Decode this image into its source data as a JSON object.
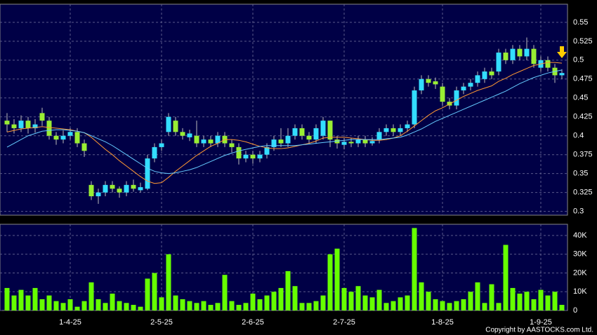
{
  "chart_data": [
    {
      "type": "candlestick",
      "up_color": "#33ddff",
      "down_color": "#99ee33",
      "open": [
        0.42,
        0.415,
        0.41,
        0.42,
        0.41,
        0.43,
        0.42,
        0.4,
        0.395,
        0.4,
        0.405,
        0.39,
        0.335,
        0.32,
        0.325,
        0.335,
        0.33,
        0.325,
        0.335,
        0.328,
        0.33,
        0.37,
        0.385,
        0.405,
        0.42,
        0.405,
        0.398,
        0.4,
        0.39,
        0.395,
        0.39,
        0.4,
        0.39,
        0.385,
        0.37,
        0.375,
        0.37,
        0.375,
        0.385,
        0.395,
        0.39,
        0.4,
        0.41,
        0.4,
        0.395,
        0.4,
        0.42,
        0.395,
        0.388,
        0.392,
        0.39,
        0.395,
        0.39,
        0.395,
        0.405,
        0.41,
        0.405,
        0.41,
        0.415,
        0.46,
        0.475,
        0.472,
        0.465,
        0.445,
        0.44,
        0.46,
        0.465,
        0.47,
        0.475,
        0.485,
        0.485,
        0.51,
        0.5,
        0.515,
        0.505,
        0.515,
        0.49,
        0.5,
        0.49,
        0.48
      ],
      "high": [
        0.43,
        0.422,
        0.427,
        0.425,
        0.422,
        0.437,
        0.425,
        0.405,
        0.407,
        0.41,
        0.41,
        0.395,
        0.34,
        0.33,
        0.34,
        0.34,
        0.333,
        0.34,
        0.342,
        0.338,
        0.375,
        0.39,
        0.395,
        0.43,
        0.425,
        0.41,
        0.408,
        0.42,
        0.4,
        0.4,
        0.405,
        0.405,
        0.395,
        0.39,
        0.38,
        0.38,
        0.38,
        0.39,
        0.4,
        0.41,
        0.41,
        0.415,
        0.415,
        0.405,
        0.415,
        0.425,
        0.42,
        0.4,
        0.397,
        0.397,
        0.4,
        0.4,
        0.398,
        0.41,
        0.415,
        0.415,
        0.415,
        0.42,
        0.465,
        0.48,
        0.48,
        0.477,
        0.47,
        0.45,
        0.465,
        0.47,
        0.475,
        0.485,
        0.49,
        0.49,
        0.515,
        0.515,
        0.52,
        0.52,
        0.53,
        0.52,
        0.505,
        0.505,
        0.495,
        0.488
      ],
      "low": [
        0.405,
        0.403,
        0.405,
        0.403,
        0.404,
        0.413,
        0.395,
        0.388,
        0.39,
        0.395,
        0.385,
        0.372,
        0.315,
        0.31,
        0.32,
        0.325,
        0.318,
        0.32,
        0.326,
        0.325,
        0.328,
        0.365,
        0.38,
        0.4,
        0.4,
        0.395,
        0.393,
        0.385,
        0.385,
        0.385,
        0.385,
        0.385,
        0.378,
        0.362,
        0.365,
        0.363,
        0.365,
        0.37,
        0.38,
        0.385,
        0.385,
        0.395,
        0.395,
        0.39,
        0.39,
        0.395,
        0.385,
        0.383,
        0.382,
        0.385,
        0.385,
        0.385,
        0.387,
        0.39,
        0.4,
        0.4,
        0.4,
        0.405,
        0.41,
        0.455,
        0.465,
        0.462,
        0.44,
        0.435,
        0.435,
        0.455,
        0.46,
        0.465,
        0.47,
        0.475,
        0.48,
        0.495,
        0.495,
        0.5,
        0.5,
        0.49,
        0.485,
        0.485,
        0.47,
        0.475
      ],
      "close": [
        0.415,
        0.41,
        0.42,
        0.41,
        0.415,
        0.42,
        0.4,
        0.395,
        0.4,
        0.405,
        0.39,
        0.38,
        0.32,
        0.325,
        0.335,
        0.33,
        0.325,
        0.335,
        0.33,
        0.332,
        0.37,
        0.385,
        0.39,
        0.425,
        0.405,
        0.4,
        0.403,
        0.39,
        0.395,
        0.39,
        0.4,
        0.39,
        0.385,
        0.37,
        0.375,
        0.37,
        0.375,
        0.385,
        0.395,
        0.39,
        0.4,
        0.41,
        0.4,
        0.395,
        0.41,
        0.42,
        0.395,
        0.39,
        0.392,
        0.39,
        0.395,
        0.39,
        0.393,
        0.405,
        0.41,
        0.405,
        0.41,
        0.415,
        0.46,
        0.475,
        0.47,
        0.468,
        0.445,
        0.44,
        0.46,
        0.465,
        0.47,
        0.48,
        0.485,
        0.48,
        0.51,
        0.5,
        0.515,
        0.505,
        0.515,
        0.495,
        0.5,
        0.49,
        0.48,
        0.483
      ],
      "series": [
        {
          "color": "#ff9933",
          "values": [
            0.405,
            0.407,
            0.409,
            0.41,
            0.411,
            0.412,
            0.411,
            0.41,
            0.409,
            0.408,
            0.406,
            0.404,
            0.398,
            0.39,
            0.382,
            0.375,
            0.367,
            0.36,
            0.353,
            0.346,
            0.34,
            0.337,
            0.338,
            0.345,
            0.353,
            0.36,
            0.367,
            0.374,
            0.38,
            0.386,
            0.39,
            0.395,
            0.395,
            0.394,
            0.392,
            0.389,
            0.386,
            0.384,
            0.383,
            0.383,
            0.384,
            0.386,
            0.388,
            0.39,
            0.393,
            0.397,
            0.398,
            0.398,
            0.398,
            0.397,
            0.396,
            0.395,
            0.394,
            0.394,
            0.395,
            0.397,
            0.4,
            0.406,
            0.413,
            0.42,
            0.427,
            0.433,
            0.437,
            0.442,
            0.447,
            0.452,
            0.456,
            0.46,
            0.463,
            0.466,
            0.472,
            0.476,
            0.481,
            0.485,
            0.489,
            0.493,
            0.495,
            0.497,
            0.497,
            0.496
          ]
        },
        {
          "color": "#66ccff",
          "values": [
            0.385,
            0.39,
            0.395,
            0.4,
            0.403,
            0.406,
            0.407,
            0.408,
            0.408,
            0.407,
            0.406,
            0.404,
            0.4,
            0.396,
            0.392,
            0.387,
            0.381,
            0.375,
            0.369,
            0.363,
            0.357,
            0.353,
            0.351,
            0.35,
            0.351,
            0.353,
            0.355,
            0.358,
            0.362,
            0.366,
            0.37,
            0.374,
            0.377,
            0.38,
            0.382,
            0.384,
            0.386,
            0.387,
            0.387,
            0.387,
            0.387,
            0.387,
            0.388,
            0.389,
            0.39,
            0.391,
            0.392,
            0.393,
            0.394,
            0.395,
            0.395,
            0.395,
            0.395,
            0.395,
            0.396,
            0.397,
            0.398,
            0.401,
            0.405,
            0.409,
            0.414,
            0.419,
            0.423,
            0.427,
            0.431,
            0.435,
            0.439,
            0.443,
            0.447,
            0.451,
            0.455,
            0.459,
            0.464,
            0.469,
            0.473,
            0.477,
            0.48,
            0.483,
            0.485,
            0.487
          ]
        }
      ],
      "ylim": [
        0.295,
        0.574
      ],
      "yticks": [
        0.3,
        0.325,
        0.35,
        0.375,
        0.4,
        0.425,
        0.45,
        0.475,
        0.5,
        0.525,
        0.55
      ],
      "grid": true
    },
    {
      "type": "bar",
      "color": "#66ff00",
      "categories": [
        null,
        null,
        null,
        null,
        null,
        null,
        null,
        null,
        null,
        "1-4-25",
        null,
        null,
        null,
        null,
        null,
        null,
        null,
        null,
        null,
        null,
        null,
        null,
        "2-5-25",
        null,
        null,
        null,
        null,
        null,
        null,
        null,
        null,
        null,
        null,
        null,
        null,
        "2-6-25",
        null,
        null,
        null,
        null,
        null,
        null,
        null,
        null,
        null,
        null,
        null,
        null,
        "2-7-25",
        null,
        null,
        null,
        null,
        null,
        null,
        null,
        null,
        null,
        null,
        null,
        null,
        null,
        "1-8-25",
        null,
        null,
        null,
        null,
        null,
        null,
        null,
        null,
        null,
        null,
        null,
        null,
        null,
        "1-9-25",
        null,
        null,
        null
      ],
      "values": [
        12000,
        8000,
        11000,
        8000,
        12000,
        6000,
        8000,
        5000,
        4000,
        6000,
        2000,
        5000,
        15000,
        6000,
        4000,
        9000,
        5000,
        4000,
        3000,
        2000,
        17000,
        20000,
        7000,
        30000,
        8000,
        6000,
        5000,
        4000,
        5000,
        3000,
        4000,
        19000,
        5000,
        3000,
        4000,
        9000,
        6000,
        8000,
        10000,
        12000,
        21000,
        13000,
        4000,
        4000,
        5000,
        8000,
        30000,
        33000,
        12000,
        10000,
        13000,
        8000,
        7000,
        11000,
        4000,
        5000,
        7000,
        8000,
        44000,
        15000,
        10000,
        6000,
        5000,
        4000,
        5000,
        6000,
        10000,
        15000,
        4000,
        14000,
        4000,
        35000,
        12000,
        9000,
        10000,
        6000,
        11000,
        8000,
        10000,
        3000
      ],
      "ylim": [
        0,
        46000
      ],
      "yticks": [
        0,
        {
          "value": 10000,
          "label": "10K"
        },
        {
          "value": 20000,
          "label": "20K"
        },
        {
          "value": 30000,
          "label": "30K"
        },
        {
          "value": 40000,
          "label": "40K"
        }
      ],
      "grid": true
    }
  ],
  "copyright": "Copyright by AASTOCKS.com Ltd."
}
